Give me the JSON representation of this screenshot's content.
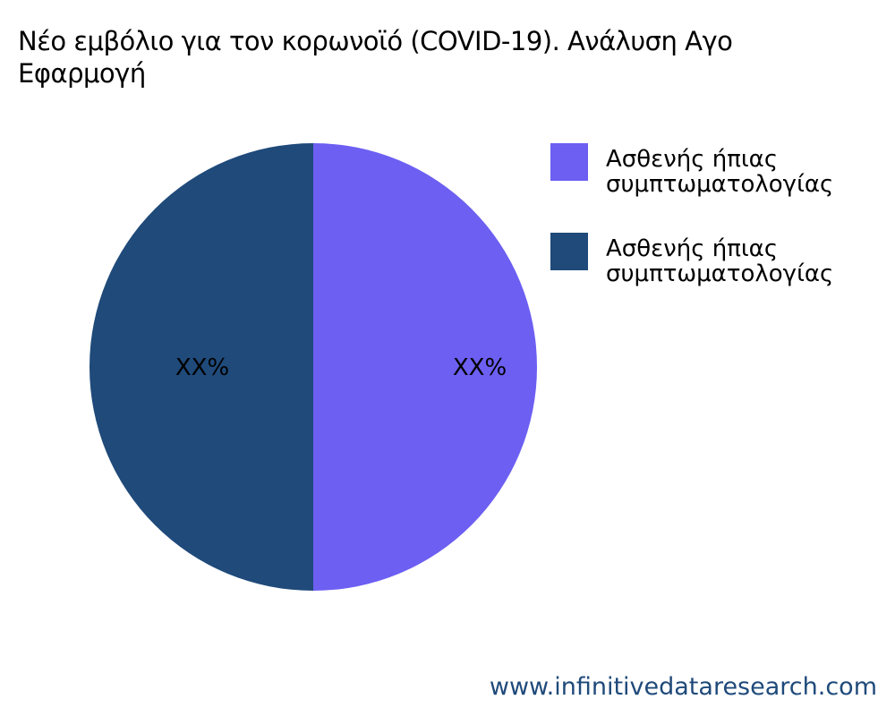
{
  "chart_data": {
    "type": "pie",
    "title": "Νέο εμβόλιο για τον κορωνοϊό (COVID-19). Ανάλυση Αγο\nΕφαρμογή",
    "slices": [
      {
        "name": "Ασθενής ήπιας συμπτωματολογίας",
        "value": 50,
        "label": "XX%",
        "color": "#6c5ff2"
      },
      {
        "name": "Ασθενής ήπιας συμπτωματολογίας",
        "value": 50,
        "label": "XX%",
        "color": "#1f4a7a"
      }
    ],
    "start_angle_deg": 90,
    "legend_placement": "right"
  },
  "watermark": "www.infinitivedataresearch.com"
}
